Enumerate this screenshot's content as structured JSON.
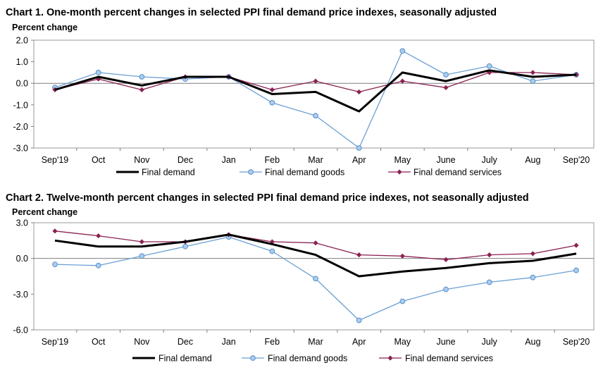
{
  "chart_data": [
    {
      "type": "line",
      "title": "Chart 1. One-month percent changes in selected PPI final demand price indexes, seasonally adjusted",
      "ylabel": "Percent change",
      "xlabel": "",
      "categories": [
        "Sep'19",
        "Oct",
        "Nov",
        "Dec",
        "Jan",
        "Feb",
        "Mar",
        "Apr",
        "May",
        "June",
        "July",
        "Aug",
        "Sep'20"
      ],
      "ylim": [
        -3.0,
        2.0
      ],
      "yticks": [
        2.0,
        1.0,
        0.0,
        -1.0,
        -2.0,
        -3.0
      ],
      "ytick_labels": [
        "2.0",
        "1.0",
        "0.0",
        "-1.0",
        "-2.0",
        "-3.0"
      ],
      "grid": false,
      "legend": "bottom",
      "series": [
        {
          "name": "Final demand",
          "color": "#000000",
          "marker": "none",
          "values": [
            -0.3,
            0.3,
            -0.1,
            0.3,
            0.3,
            -0.5,
            -0.4,
            -1.3,
            0.5,
            0.1,
            0.6,
            0.3,
            0.4
          ]
        },
        {
          "name": "Final demand goods",
          "color": "#6b9fd4",
          "marker": "circle",
          "values": [
            -0.2,
            0.5,
            0.3,
            0.2,
            0.3,
            -0.9,
            -1.5,
            -3.0,
            1.5,
            0.4,
            0.8,
            0.1,
            0.4
          ]
        },
        {
          "name": "Final demand services",
          "color": "#8b2252",
          "marker": "diamond",
          "values": [
            -0.3,
            0.2,
            -0.3,
            0.3,
            0.3,
            -0.3,
            0.1,
            -0.4,
            0.1,
            -0.2,
            0.5,
            0.5,
            0.4
          ]
        }
      ]
    },
    {
      "type": "line",
      "title": "Chart 2. Twelve-month percent changes in selected PPI final demand price indexes, not seasonally adjusted",
      "ylabel": "Percent change",
      "xlabel": "",
      "categories": [
        "Sep'19",
        "Oct",
        "Nov",
        "Dec",
        "Jan",
        "Feb",
        "Mar",
        "Apr",
        "May",
        "June",
        "July",
        "Aug",
        "Sep'20"
      ],
      "ylim": [
        -6.0,
        3.0
      ],
      "yticks": [
        3.0,
        0.0,
        -3.0,
        -6.0
      ],
      "ytick_labels": [
        "3.0",
        "0.0",
        "-3.0",
        "-6.0"
      ],
      "grid": false,
      "legend": "bottom",
      "series": [
        {
          "name": "Final demand",
          "color": "#000000",
          "marker": "none",
          "values": [
            1.5,
            1.0,
            1.0,
            1.4,
            2.0,
            1.2,
            0.3,
            -1.5,
            -1.1,
            -0.8,
            -0.4,
            -0.2,
            0.4
          ]
        },
        {
          "name": "Final demand goods",
          "color": "#6b9fd4",
          "marker": "circle",
          "values": [
            -0.5,
            -0.6,
            0.2,
            1.0,
            1.8,
            0.6,
            -1.7,
            -5.2,
            -3.6,
            -2.6,
            -2.0,
            -1.6,
            -1.0
          ]
        },
        {
          "name": "Final demand services",
          "color": "#8b2252",
          "marker": "diamond",
          "values": [
            2.3,
            1.9,
            1.4,
            1.4,
            2.0,
            1.4,
            1.3,
            0.3,
            0.2,
            -0.1,
            0.3,
            0.4,
            1.1
          ]
        }
      ]
    }
  ]
}
